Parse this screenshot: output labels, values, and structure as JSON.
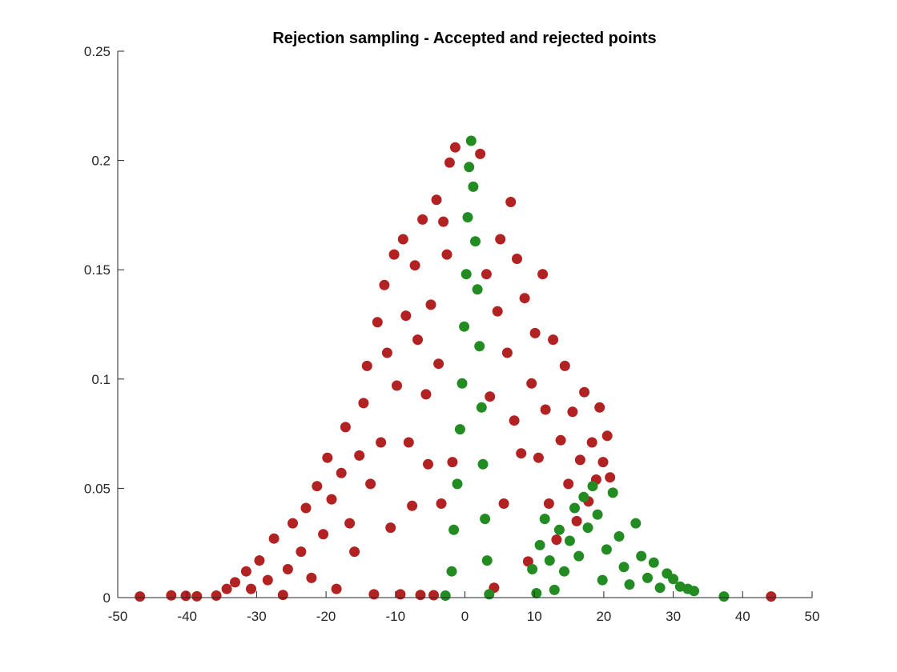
{
  "chart_data": {
    "type": "scatter",
    "title": "Rejection sampling - Accepted and rejected points",
    "xlabel": "",
    "ylabel": "",
    "xlim": [
      -50,
      50
    ],
    "ylim": [
      0,
      0.25
    ],
    "xticks": [
      -50,
      -40,
      -30,
      -20,
      -10,
      0,
      10,
      20,
      30,
      40,
      50
    ],
    "yticks": [
      0,
      0.05,
      0.1,
      0.15,
      0.2,
      0.25
    ],
    "xtick_labels": [
      "-50",
      "-40",
      "-30",
      "-20",
      "-10",
      "0",
      "10",
      "20",
      "30",
      "40",
      "50"
    ],
    "ytick_labels": [
      "0",
      "0.05",
      "0.1",
      "0.15",
      "0.2",
      "0.25"
    ],
    "grid": false,
    "legend": "none",
    "colors": {
      "rejected": "#b22222",
      "accepted": "#228b22",
      "axis": "#262626"
    },
    "series": [
      {
        "color": "#b22222",
        "points": [
          [
            -46.8,
            0.0005
          ],
          [
            -42.3,
            0.001
          ],
          [
            -40.2,
            0.0008
          ],
          [
            -38.6,
            0.0006
          ],
          [
            -35.8,
            0.0009
          ],
          [
            -34.3,
            0.004
          ],
          [
            -33.1,
            0.007
          ],
          [
            -31.5,
            0.012
          ],
          [
            -30.8,
            0.004
          ],
          [
            -29.6,
            0.017
          ],
          [
            -28.4,
            0.008
          ],
          [
            -27.5,
            0.027
          ],
          [
            -26.2,
            0.0012
          ],
          [
            -25.5,
            0.013
          ],
          [
            -24.8,
            0.034
          ],
          [
            -23.6,
            0.021
          ],
          [
            -22.9,
            0.041
          ],
          [
            -22.1,
            0.009
          ],
          [
            -21.3,
            0.051
          ],
          [
            -20.4,
            0.029
          ],
          [
            -19.8,
            0.064
          ],
          [
            -19.2,
            0.045
          ],
          [
            -18.5,
            0.004
          ],
          [
            -17.8,
            0.057
          ],
          [
            -17.2,
            0.078
          ],
          [
            -16.6,
            0.034
          ],
          [
            -15.9,
            0.021
          ],
          [
            -15.2,
            0.065
          ],
          [
            -14.6,
            0.089
          ],
          [
            -14.1,
            0.106
          ],
          [
            -13.6,
            0.052
          ],
          [
            -13.1,
            0.0015
          ],
          [
            -12.6,
            0.126
          ],
          [
            -12.1,
            0.071
          ],
          [
            -11.6,
            0.143
          ],
          [
            -11.2,
            0.112
          ],
          [
            -10.7,
            0.032
          ],
          [
            -10.2,
            0.157
          ],
          [
            -9.8,
            0.097
          ],
          [
            -9.3,
            0.0015
          ],
          [
            -8.9,
            0.164
          ],
          [
            -8.5,
            0.129
          ],
          [
            -8.1,
            0.071
          ],
          [
            -7.6,
            0.042
          ],
          [
            -7.2,
            0.152
          ],
          [
            -6.8,
            0.118
          ],
          [
            -6.4,
            0.0012
          ],
          [
            -6.1,
            0.173
          ],
          [
            -5.6,
            0.093
          ],
          [
            -5.3,
            0.061
          ],
          [
            -4.9,
            0.134
          ],
          [
            -4.5,
            0.0011
          ],
          [
            -4.1,
            0.182
          ],
          [
            -3.8,
            0.107
          ],
          [
            -3.4,
            0.043
          ],
          [
            -3.1,
            0.172
          ],
          [
            -2.6,
            0.157
          ],
          [
            -2.2,
            0.199
          ],
          [
            -1.8,
            0.062
          ],
          [
            -1.4,
            0.206
          ],
          [
            2.2,
            0.203
          ],
          [
            3.1,
            0.148
          ],
          [
            3.6,
            0.092
          ],
          [
            4.2,
            0.0045
          ],
          [
            4.7,
            0.131
          ],
          [
            5.1,
            0.164
          ],
          [
            5.6,
            0.043
          ],
          [
            6.1,
            0.112
          ],
          [
            6.6,
            0.181
          ],
          [
            7.1,
            0.081
          ],
          [
            7.5,
            0.155
          ],
          [
            8.1,
            0.066
          ],
          [
            8.6,
            0.137
          ],
          [
            9.1,
            0.0165
          ],
          [
            9.6,
            0.098
          ],
          [
            10.1,
            0.121
          ],
          [
            10.6,
            0.064
          ],
          [
            11.2,
            0.148
          ],
          [
            11.6,
            0.086
          ],
          [
            12.1,
            0.043
          ],
          [
            12.7,
            0.118
          ],
          [
            13.2,
            0.0265
          ],
          [
            13.8,
            0.072
          ],
          [
            14.4,
            0.106
          ],
          [
            14.9,
            0.052
          ],
          [
            15.5,
            0.085
          ],
          [
            16.1,
            0.035
          ],
          [
            16.6,
            0.063
          ],
          [
            17.2,
            0.094
          ],
          [
            17.8,
            0.044
          ],
          [
            18.3,
            0.071
          ],
          [
            18.9,
            0.054
          ],
          [
            19.4,
            0.087
          ],
          [
            19.9,
            0.062
          ],
          [
            20.5,
            0.074
          ],
          [
            20.9,
            0.055
          ],
          [
            44.1,
            0.0005
          ]
        ]
      },
      {
        "color": "#228b22",
        "points": [
          [
            -2.8,
            0.0009
          ],
          [
            -1.9,
            0.012
          ],
          [
            -1.6,
            0.031
          ],
          [
            -1.1,
            0.052
          ],
          [
            -0.7,
            0.077
          ],
          [
            -0.4,
            0.098
          ],
          [
            -0.1,
            0.124
          ],
          [
            0.2,
            0.148
          ],
          [
            0.4,
            0.174
          ],
          [
            0.6,
            0.197
          ],
          [
            0.9,
            0.209
          ],
          [
            1.2,
            0.188
          ],
          [
            1.5,
            0.163
          ],
          [
            1.8,
            0.141
          ],
          [
            2.1,
            0.115
          ],
          [
            2.4,
            0.087
          ],
          [
            2.6,
            0.061
          ],
          [
            2.9,
            0.036
          ],
          [
            3.2,
            0.017
          ],
          [
            3.5,
            0.0015
          ],
          [
            9.7,
            0.013
          ],
          [
            10.3,
            0.002
          ],
          [
            10.8,
            0.024
          ],
          [
            11.5,
            0.036
          ],
          [
            12.2,
            0.017
          ],
          [
            12.9,
            0.0035
          ],
          [
            13.6,
            0.031
          ],
          [
            14.3,
            0.012
          ],
          [
            15.1,
            0.026
          ],
          [
            15.8,
            0.041
          ],
          [
            16.4,
            0.019
          ],
          [
            17.1,
            0.046
          ],
          [
            17.7,
            0.032
          ],
          [
            18.4,
            0.051
          ],
          [
            19.1,
            0.038
          ],
          [
            19.8,
            0.008
          ],
          [
            20.4,
            0.022
          ],
          [
            21.3,
            0.048
          ],
          [
            22.2,
            0.028
          ],
          [
            22.9,
            0.014
          ],
          [
            23.7,
            0.006
          ],
          [
            24.6,
            0.034
          ],
          [
            25.4,
            0.019
          ],
          [
            26.3,
            0.009
          ],
          [
            27.2,
            0.016
          ],
          [
            28.1,
            0.0045
          ],
          [
            29.1,
            0.011
          ],
          [
            30.0,
            0.0085
          ],
          [
            31.0,
            0.005
          ],
          [
            32.1,
            0.004
          ],
          [
            33.0,
            0.003
          ],
          [
            37.3,
            0.0005
          ]
        ]
      }
    ]
  }
}
